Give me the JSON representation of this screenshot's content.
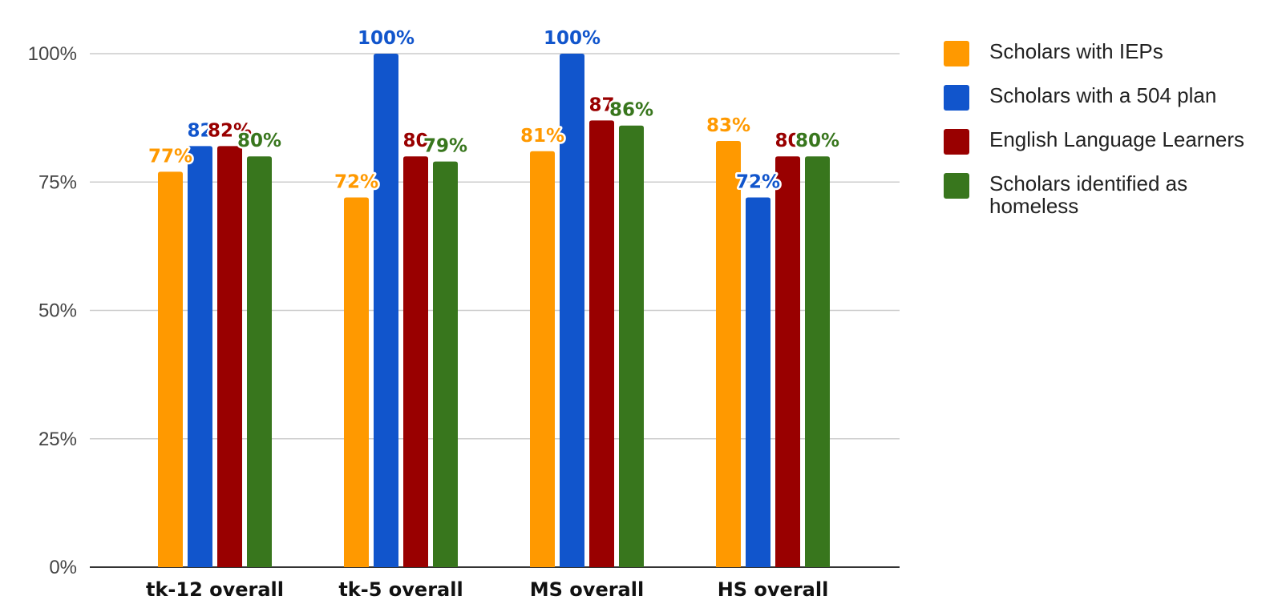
{
  "chart_data": {
    "type": "bar",
    "title": "",
    "xlabel": "",
    "ylabel": "",
    "categories": [
      "tk-12 overall",
      "tk-5 overall",
      "MS overall",
      "HS overall"
    ],
    "ylim": [
      0,
      100
    ],
    "yticks": [
      0,
      25,
      50,
      75,
      100
    ],
    "ytick_labels": [
      "0%",
      "25%",
      "50%",
      "75%",
      "100%"
    ],
    "grid": true,
    "legend_position": "right",
    "series": [
      {
        "name": "Scholars with IEPs",
        "color": "#ff9900",
        "values": [
          77,
          72,
          81,
          83
        ],
        "labels": [
          "77%",
          "72%",
          "81%",
          "83%"
        ]
      },
      {
        "name": "Scholars with a 504 plan",
        "color": "#1155cc",
        "values": [
          82,
          100,
          100,
          72
        ],
        "labels": [
          "82",
          "100%",
          "100%",
          "72%"
        ]
      },
      {
        "name": "English Language Learners",
        "color": "#990000",
        "values": [
          82,
          80,
          87,
          80
        ],
        "labels": [
          "82%",
          "80",
          "87",
          "80"
        ]
      },
      {
        "name": "Scholars identified as homeless",
        "color": "#38761d",
        "values": [
          80,
          79,
          86,
          80
        ],
        "labels": [
          "80%",
          "79%",
          "86%",
          "80%"
        ]
      }
    ]
  }
}
